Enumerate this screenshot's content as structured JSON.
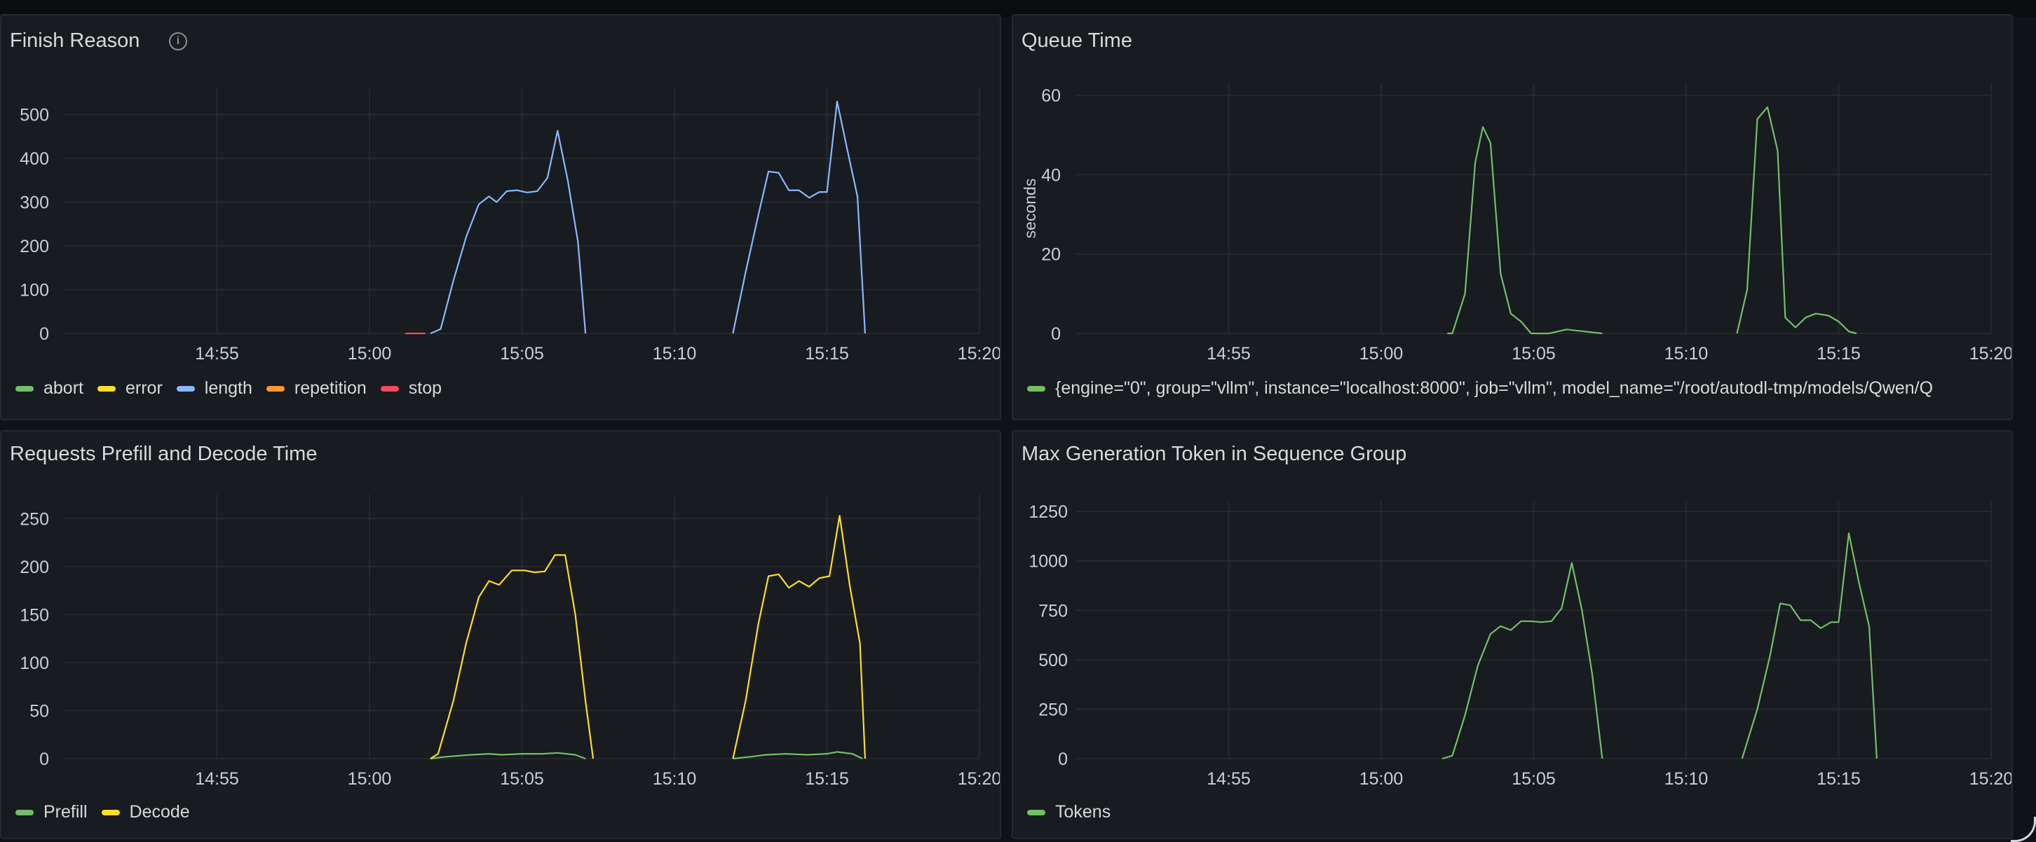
{
  "panels": [
    {
      "title": "Finish Reason",
      "info_icon": "info-icon"
    },
    {
      "title": "Queue Time"
    },
    {
      "title": "Requests Prefill and Decode Time"
    },
    {
      "title": "Max Generation Token in Sequence Group"
    }
  ],
  "chart_data": [
    {
      "type": "line",
      "title": "Finish Reason",
      "xlabel": "",
      "ylabel": "",
      "x_ticks": [
        "14:55",
        "15:00",
        "15:05",
        "15:10",
        "15:15",
        "15:20"
      ],
      "x_range": [
        "14:50",
        "15:20"
      ],
      "ylim": [
        0,
        560
      ],
      "y_ticks": [
        0,
        100,
        200,
        300,
        400,
        500
      ],
      "grid": true,
      "legend": "bottom",
      "series": [
        {
          "name": "abort",
          "color": "#73bf69",
          "points": []
        },
        {
          "name": "error",
          "color": "#fade2a",
          "points": []
        },
        {
          "name": "length",
          "color": "#8ab8ff",
          "points": [
            [
              "15:02:00",
              0
            ],
            [
              "15:02:20",
              10
            ],
            [
              "15:02:45",
              120
            ],
            [
              "15:03:10",
              220
            ],
            [
              "15:03:35",
              295
            ],
            [
              "15:03:55",
              313
            ],
            [
              "15:04:10",
              300
            ],
            [
              "15:04:30",
              325
            ],
            [
              "15:04:50",
              327
            ],
            [
              "15:05:10",
              322
            ],
            [
              "15:05:30",
              325
            ],
            [
              "15:05:50",
              355
            ],
            [
              "15:06:10",
              463
            ],
            [
              "15:06:30",
              350
            ],
            [
              "15:06:50",
              210
            ],
            [
              "15:07:05",
              0
            ],
            [
              "15:11:55",
              0
            ],
            [
              "15:12:20",
              140
            ],
            [
              "15:12:45",
              270
            ],
            [
              "15:13:05",
              370
            ],
            [
              "15:13:25",
              367
            ],
            [
              "15:13:45",
              327
            ],
            [
              "15:14:05",
              327
            ],
            [
              "15:14:25",
              310
            ],
            [
              "15:14:45",
              323
            ],
            [
              "15:15:00",
              323
            ],
            [
              "15:15:20",
              530
            ],
            [
              "15:15:40",
              420
            ],
            [
              "15:16:00",
              313
            ],
            [
              "15:16:15",
              0
            ]
          ]
        },
        {
          "name": "repetition",
          "color": "#ff9830",
          "points": []
        },
        {
          "name": "stop",
          "color": "#f2495c",
          "points": [
            [
              "14:58:00",
              0
            ],
            [
              "15:01:10",
              0
            ],
            [
              "15:01:50",
              0
            ],
            [
              "15:20:20",
              0
            ]
          ]
        }
      ]
    },
    {
      "type": "line",
      "title": "Queue Time",
      "xlabel": "",
      "ylabel": "seconds",
      "x_ticks": [
        "14:55",
        "15:00",
        "15:05",
        "15:10",
        "15:15",
        "15:20"
      ],
      "x_range": [
        "14:50",
        "15:20"
      ],
      "ylim": [
        0,
        63
      ],
      "y_ticks": [
        0,
        20,
        40,
        60
      ],
      "grid": true,
      "legend": "bottom",
      "series": [
        {
          "name": "{engine=\"0\", group=\"vllm\", instance=\"localhost:8000\", job=\"vllm\", model_name=\"/root/autodl-tmp/models/Qwen/Q",
          "color": "#73bf69",
          "points": [
            [
              "14:58:10",
              0
            ],
            [
              "15:01:10",
              0
            ],
            [
              "15:02:10",
              0
            ],
            [
              "15:02:20",
              0
            ],
            [
              "15:02:45",
              10
            ],
            [
              "15:03:05",
              43
            ],
            [
              "15:03:20",
              52
            ],
            [
              "15:03:35",
              48
            ],
            [
              "15:03:55",
              15
            ],
            [
              "15:04:15",
              5
            ],
            [
              "15:04:35",
              3
            ],
            [
              "15:04:55",
              0
            ],
            [
              "15:05:30",
              0
            ],
            [
              "15:06:05",
              1
            ],
            [
              "15:06:40",
              0.5
            ],
            [
              "15:07:15",
              0
            ],
            [
              "15:11:40",
              0
            ],
            [
              "15:12:00",
              11
            ],
            [
              "15:12:20",
              54
            ],
            [
              "15:12:40",
              57
            ],
            [
              "15:13:00",
              46
            ],
            [
              "15:13:15",
              4
            ],
            [
              "15:13:35",
              1.5
            ],
            [
              "15:13:55",
              4
            ],
            [
              "15:14:15",
              5
            ],
            [
              "15:14:40",
              4.5
            ],
            [
              "15:15:00",
              3
            ],
            [
              "15:15:20",
              0.5
            ],
            [
              "15:15:35",
              0
            ],
            [
              "15:20:10",
              0
            ]
          ]
        }
      ]
    },
    {
      "type": "line",
      "title": "Requests Prefill and Decode Time",
      "xlabel": "",
      "ylabel": "",
      "x_ticks": [
        "14:55",
        "15:00",
        "15:05",
        "15:10",
        "15:15",
        "15:20"
      ],
      "x_range": [
        "14:50",
        "15:20"
      ],
      "ylim": [
        0,
        275
      ],
      "y_ticks": [
        0,
        50,
        100,
        150,
        200,
        250
      ],
      "grid": true,
      "legend": "bottom",
      "series": [
        {
          "name": "Prefill",
          "color": "#73bf69",
          "points": [
            [
              "15:02:00",
              0
            ],
            [
              "15:02:30",
              2
            ],
            [
              "15:03:20",
              4
            ],
            [
              "15:03:55",
              5
            ],
            [
              "15:04:20",
              4
            ],
            [
              "15:05:00",
              5
            ],
            [
              "15:05:40",
              5
            ],
            [
              "15:06:10",
              6
            ],
            [
              "15:06:45",
              4
            ],
            [
              "15:07:05",
              0
            ],
            [
              "15:11:55",
              0
            ],
            [
              "15:12:30",
              2
            ],
            [
              "15:13:00",
              4
            ],
            [
              "15:13:40",
              5
            ],
            [
              "15:14:20",
              4
            ],
            [
              "15:15:00",
              5
            ],
            [
              "15:15:20",
              7
            ],
            [
              "15:15:50",
              5
            ],
            [
              "15:16:10",
              0
            ]
          ]
        },
        {
          "name": "Decode",
          "color": "#fade2a",
          "points": [
            [
              "14:58:00",
              0
            ],
            [
              "15:01:10",
              0
            ],
            [
              "15:02:00",
              0
            ],
            [
              "15:02:15",
              5
            ],
            [
              "15:02:45",
              60
            ],
            [
              "15:03:10",
              120
            ],
            [
              "15:03:35",
              168
            ],
            [
              "15:03:55",
              185
            ],
            [
              "15:04:15",
              181
            ],
            [
              "15:04:40",
              196
            ],
            [
              "15:05:05",
              196
            ],
            [
              "15:05:25",
              194
            ],
            [
              "15:05:45",
              195
            ],
            [
              "15:06:05",
              212
            ],
            [
              "15:06:25",
              212
            ],
            [
              "15:06:45",
              150
            ],
            [
              "15:07:05",
              60
            ],
            [
              "15:07:20",
              0
            ],
            [
              "15:11:55",
              0
            ],
            [
              "15:12:20",
              60
            ],
            [
              "15:12:45",
              140
            ],
            [
              "15:13:05",
              190
            ],
            [
              "15:13:25",
              192
            ],
            [
              "15:13:45",
              178
            ],
            [
              "15:14:05",
              185
            ],
            [
              "15:14:25",
              179
            ],
            [
              "15:14:45",
              188
            ],
            [
              "15:15:05",
              190
            ],
            [
              "15:15:25",
              253
            ],
            [
              "15:15:45",
              180
            ],
            [
              "15:16:05",
              120
            ],
            [
              "15:16:15",
              0
            ],
            [
              "15:20:20",
              0
            ]
          ]
        }
      ]
    },
    {
      "type": "line",
      "title": "Max Generation Token in Sequence Group",
      "xlabel": "",
      "ylabel": "",
      "x_ticks": [
        "14:55",
        "15:00",
        "15:05",
        "15:10",
        "15:15",
        "15:20"
      ],
      "x_range": [
        "14:50",
        "15:20"
      ],
      "ylim": [
        0,
        1300
      ],
      "y_ticks": [
        0,
        250,
        500,
        750,
        1000,
        1250
      ],
      "grid": true,
      "legend": "bottom",
      "series": [
        {
          "name": "Tokens",
          "color": "#73bf69",
          "points": [
            [
              "14:58:10",
              0
            ],
            [
              "15:01:10",
              0
            ],
            [
              "15:02:00",
              0
            ],
            [
              "15:02:20",
              15
            ],
            [
              "15:02:45",
              220
            ],
            [
              "15:03:10",
              470
            ],
            [
              "15:03:35",
              630
            ],
            [
              "15:03:55",
              670
            ],
            [
              "15:04:15",
              650
            ],
            [
              "15:04:35",
              695
            ],
            [
              "15:04:55",
              695
            ],
            [
              "15:05:15",
              690
            ],
            [
              "15:05:35",
              695
            ],
            [
              "15:05:55",
              760
            ],
            [
              "15:06:15",
              990
            ],
            [
              "15:06:35",
              750
            ],
            [
              "15:06:55",
              430
            ],
            [
              "15:07:15",
              0
            ],
            [
              "15:11:50",
              0
            ],
            [
              "15:12:20",
              250
            ],
            [
              "15:12:45",
              520
            ],
            [
              "15:13:05",
              785
            ],
            [
              "15:13:25",
              775
            ],
            [
              "15:13:45",
              700
            ],
            [
              "15:14:05",
              700
            ],
            [
              "15:14:25",
              660
            ],
            [
              "15:14:45",
              690
            ],
            [
              "15:15:00",
              690
            ],
            [
              "15:15:20",
              1140
            ],
            [
              "15:15:40",
              890
            ],
            [
              "15:16:00",
              670
            ],
            [
              "15:16:15",
              0
            ],
            [
              "15:20:20",
              0
            ]
          ]
        }
      ]
    }
  ]
}
